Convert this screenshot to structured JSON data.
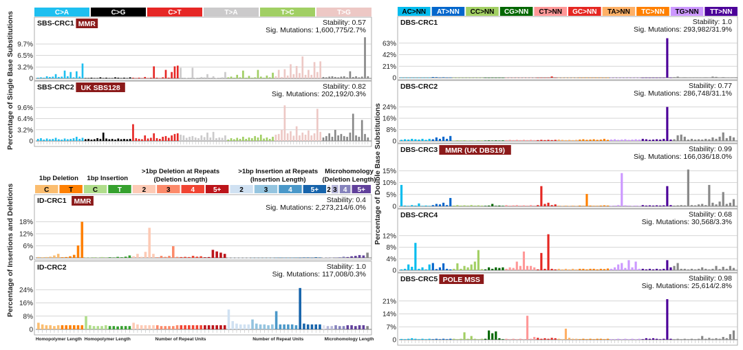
{
  "colors": {
    "sbs": [
      "#1ebff0",
      "#000000",
      "#e62725",
      "#cbcacb",
      "#a1cf64",
      "#edc8c5"
    ],
    "sbs_text": [
      "#ffffff",
      "#ffffff",
      "#ffffff",
      "#ffffff",
      "#ffffff",
      "#ffffff"
    ],
    "dbs": [
      "#03bcee",
      "#0266cc",
      "#a2cf63",
      "#036700",
      "#ff9898",
      "#e52722",
      "#ffb066",
      "#ff8000",
      "#cc98ff",
      "#4c0199"
    ],
    "dbs_text": [
      "#000000",
      "#ffffff",
      "#000000",
      "#ffffff",
      "#000000",
      "#ffffff",
      "#000000",
      "#ffffff",
      "#000000",
      "#ffffff"
    ],
    "id": [
      "#fbbd6f",
      "#fe8002",
      "#b0dd8b",
      "#36a12e",
      "#fdcab5",
      "#fc8a6a",
      "#f14432",
      "#bc141a",
      "#d0e1f2",
      "#94c4df",
      "#4a98c9",
      "#1764ab",
      "#e2e2ef",
      "#b6b6d8",
      "#8683bd",
      "#61409b"
    ],
    "id_text": [
      "#000000",
      "#000000",
      "#000000",
      "#ffffff",
      "#000000",
      "#000000",
      "#ffffff",
      "#ffffff",
      "#000000",
      "#000000",
      "#ffffff",
      "#ffffff",
      "#000000",
      "#000000",
      "#ffffff",
      "#ffffff"
    ],
    "tag_bg": "#8b1a1a"
  },
  "left": {
    "sbs_ylabel": "Percentage of Single Base Substitutions",
    "id_ylabel": "Percentage of Insertions and Deletions",
    "sbs_categories": [
      "C>A",
      "C>G",
      "C>T",
      "T>A",
      "T>C",
      "T>G"
    ],
    "id_groups": [
      {
        "label": "1bp Deletion",
        "line2": "",
        "cells": [
          "C",
          "T"
        ],
        "xlabel": "Homopolymer Length"
      },
      {
        "label": "1bp Insertion",
        "line2": "",
        "cells": [
          "C",
          "T"
        ],
        "xlabel": "Homopolymer Length"
      },
      {
        "label": ">1bp Deletion at Repeats",
        "line2": "(Deletion Length)",
        "cells": [
          "2",
          "3",
          "4",
          "5+"
        ],
        "xlabel": "Number of Repeat Units"
      },
      {
        "label": ">1bp Insertion at Repeats",
        "line2": "(Insertion Length)",
        "cells": [
          "2",
          "3",
          "4",
          "5+"
        ],
        "xlabel": "Number of Repeat Units"
      },
      {
        "label": "Microhomology",
        "line2": "(Deletion Length)",
        "cells": [
          "2",
          "3",
          "4",
          "5+"
        ],
        "xlabel": "Microhomology Length"
      }
    ]
  },
  "right": {
    "dbs_ylabel": "Percentage of Double Base Substitutions",
    "dbs_categories": [
      "AC>NN",
      "AT>NN",
      "CC>NN",
      "CG>NN",
      "CT>NN",
      "GC>NN",
      "TA>NN",
      "TC>NN",
      "TG>NN",
      "TT>NN"
    ]
  },
  "chart_data": [
    {
      "type": "bar",
      "title": "SBS-CRC1",
      "tag": "MMR",
      "stability": "Stability: 0.57",
      "mutations": "Sig. Mutations: 1,600,775/2.7%",
      "ylabel": "Percentage of Single Base Substitutions",
      "ylim": [
        0,
        13
      ],
      "yticks": [
        0,
        3.2,
        6.5,
        9.7
      ],
      "ytick_labels": [
        "0",
        "3.2%",
        "6.5%",
        "9.7%"
      ],
      "group_sizes": [
        16,
        16,
        16,
        16,
        16,
        16
      ],
      "values": [
        0.2,
        0.3,
        0.2,
        0.6,
        0.4,
        0.5,
        1.2,
        0.4,
        0.5,
        2.2,
        0.6,
        1.8,
        0.3,
        2.0,
        0.5,
        4.2,
        0.1,
        0.1,
        0.2,
        0.1,
        0.1,
        0.3,
        0.1,
        0.2,
        0.1,
        0.1,
        0.3,
        0.2,
        0.1,
        0.2,
        0.1,
        0.3,
        0.2,
        0.1,
        0.2,
        0.1,
        0.4,
        0.1,
        0.2,
        3.4,
        0.2,
        0.1,
        0.3,
        2.4,
        0.2,
        1.8,
        3.4,
        3.6,
        3.0,
        0.2,
        0.1,
        0.2,
        3.0,
        0.1,
        0.2,
        0.4,
        0.3,
        1.2,
        0.2,
        0.6,
        0.1,
        0.2,
        0.3,
        1.8,
        0.3,
        0.5,
        0.2,
        1.0,
        0.3,
        2.2,
        0.2,
        0.7,
        0.2,
        0.3,
        2.4,
        0.5,
        0.2,
        0.8,
        0.3,
        1.6,
        0.6,
        2.4,
        0.4,
        2.6,
        0.8,
        4.0,
        1.2,
        3.5,
        1.5,
        6.2,
        1.0,
        2.4,
        1.0,
        4.6,
        1.8,
        4.8,
        0.4,
        0.3,
        0.5,
        0.6,
        0.4,
        0.3,
        0.5,
        0.6,
        0.3,
        2.0,
        0.4,
        0.6,
        0.3,
        0.5,
        11.6,
        0.6
      ]
    },
    {
      "type": "bar",
      "title": "SBS-CRC2",
      "tag": "UK SBS128",
      "stability": "Stability: 0.82",
      "mutations": "Sig. Mutations: 202,192/0.3%",
      "ylabel": "Percentage of Single Base Substitutions",
      "ylim": [
        0,
        12.8
      ],
      "yticks": [
        0,
        3.2,
        6.4,
        9.6
      ],
      "ytick_labels": [
        "0",
        "3.2%",
        "6.4%",
        "9.6%"
      ],
      "group_sizes": [
        16,
        16,
        16,
        16,
        16,
        16
      ],
      "values": [
        0.6,
        0.8,
        0.4,
        0.7,
        0.5,
        0.6,
        0.9,
        0.5,
        0.4,
        0.7,
        0.5,
        0.6,
        0.8,
        1.2,
        0.6,
        0.9,
        0.5,
        0.6,
        0.4,
        0.5,
        0.8,
        0.6,
        2.4,
        0.7,
        0.5,
        0.6,
        0.4,
        0.7,
        0.5,
        0.6,
        0.5,
        0.6,
        4.8,
        0.8,
        0.6,
        0.5,
        1.6,
        0.7,
        0.9,
        2.2,
        0.8,
        0.6,
        1.2,
        1.4,
        0.9,
        1.6,
        2.0,
        2.2,
        1.8,
        1.6,
        0.9,
        1.2,
        1.4,
        1.0,
        0.8,
        1.6,
        1.1,
        2.4,
        1.0,
        2.6,
        0.8,
        1.0,
        0.9,
        1.6,
        0.4,
        0.8,
        0.5,
        0.9,
        0.6,
        1.2,
        0.6,
        1.0,
        0.8,
        1.4,
        1.0,
        1.8,
        0.7,
        1.0,
        0.6,
        1.2,
        1.8,
        2.0,
        3.2,
        10.2,
        2.2,
        2.8,
        1.5,
        4.2,
        1.6,
        2.4,
        1.8,
        3.0,
        1.6,
        2.2,
        9.2,
        2.6,
        1.0,
        1.4,
        2.2,
        1.2,
        3.2,
        1.6,
        2.0,
        1.4,
        1.2,
        2.4,
        7.8,
        1.6,
        1.2,
        6.0,
        2.0,
        1.0
      ]
    },
    {
      "type": "bar",
      "title": "ID-CRC1",
      "tag": "MMR",
      "stability": "Stability: 0.4",
      "mutations": "Sig. Mutations: 2,273,214/6.0%",
      "ylabel": "Percentage of Insertions and Deletions",
      "ylim": [
        0,
        24
      ],
      "yticks": [
        0,
        6,
        12,
        18
      ],
      "ytick_labels": [
        "0",
        "6%",
        "12%",
        "18%"
      ],
      "group_sizes": [
        6,
        6,
        6,
        6,
        6,
        6,
        6,
        6,
        6,
        6,
        6,
        6,
        1,
        2,
        3,
        5
      ],
      "values": [
        0.4,
        0.3,
        0.4,
        0.6,
        1.2,
        2.0,
        0.3,
        0.4,
        0.8,
        1.5,
        6.2,
        18.0,
        0.2,
        0.2,
        0.3,
        0.2,
        0.4,
        0.3,
        0.3,
        0.2,
        0.5,
        0.3,
        0.6,
        1.2,
        0.8,
        2.0,
        0.5,
        3.0,
        15.0,
        2.0,
        0.3,
        1.0,
        0.5,
        1.0,
        5.8,
        0.5,
        0.4,
        0.5,
        0.4,
        1.0,
        0.6,
        0.8,
        0.3,
        0.4,
        4.0,
        3.2,
        2.6,
        2.0,
        0.1,
        0.1,
        0.1,
        0.1,
        0.1,
        0.1,
        0.1,
        0.1,
        0.1,
        0.1,
        0.1,
        0.1,
        0.1,
        0.2,
        0.1,
        0.1,
        0.1,
        0.2,
        0.1,
        0.2,
        0.2,
        0.1,
        0.3,
        0.2,
        0.2,
        0.2,
        0.1,
        0.2,
        0.3,
        0.6,
        0.4,
        0.8,
        1.0,
        1.4,
        1.2,
        2.6
      ]
    },
    {
      "type": "bar",
      "title": "ID-CRC2",
      "tag": "",
      "stability": "Stability: 1.0",
      "mutations": "Sig. Mutations: 117,008/0.3%",
      "ylabel": "Percentage of Insertions and Deletions",
      "ylim": [
        0,
        32
      ],
      "yticks": [
        0,
        8,
        16,
        24
      ],
      "ytick_labels": [
        "0",
        "8%",
        "16%",
        "24%"
      ],
      "group_sizes": [
        6,
        6,
        6,
        6,
        6,
        6,
        6,
        6,
        6,
        6,
        6,
        6,
        1,
        2,
        3,
        5
      ],
      "values": [
        4.0,
        3.0,
        2.5,
        2.5,
        2.0,
        2.5,
        2.5,
        2.5,
        2.5,
        2.5,
        2.5,
        2.5,
        8.0,
        2.5,
        2.0,
        2.0,
        2.0,
        2.5,
        2.0,
        2.0,
        1.8,
        2.0,
        2.0,
        2.0,
        4.0,
        3.0,
        2.5,
        2.5,
        2.5,
        2.5,
        2.5,
        2.0,
        2.0,
        2.0,
        2.0,
        2.5,
        2.5,
        2.5,
        2.5,
        2.5,
        2.5,
        2.5,
        2.5,
        2.5,
        2.5,
        2.5,
        2.5,
        2.5,
        12.0,
        5.0,
        3.5,
        3.0,
        3.0,
        3.0,
        6.0,
        3.5,
        3.0,
        3.0,
        2.5,
        3.0,
        11.0,
        3.0,
        3.0,
        3.0,
        3.0,
        2.5,
        25.0,
        3.5,
        3.0,
        3.0,
        3.0,
        3.0,
        2.5,
        2.0,
        2.0,
        2.5,
        2.0,
        2.0,
        2.5,
        2.5,
        2.0,
        2.5,
        2.5,
        2.0
      ]
    },
    {
      "type": "bar",
      "title": "DBS-CRC1",
      "tag": "",
      "stability": "Stability: 1.0",
      "mutations": "Sig. Mutations: 293,982/31.9%",
      "ylabel": "Percentage of Double Base Substitutions",
      "ylim": [
        0,
        84
      ],
      "yticks": [
        0,
        21,
        42,
        63
      ],
      "ytick_labels": [
        "0",
        "21%",
        "42%",
        "63%"
      ],
      "group_sizes": [
        9,
        6,
        9,
        6,
        9,
        6,
        6,
        9,
        9,
        9
      ],
      "values": [
        0.3,
        0.2,
        0.3,
        0.2,
        0.3,
        0.2,
        0.3,
        0.2,
        0.3,
        1.2,
        1.0,
        0.3,
        0.8,
        0.3,
        0.5,
        0.2,
        0.3,
        0.2,
        0.3,
        0.2,
        0.3,
        0.2,
        0.3,
        0.2,
        0.3,
        0.2,
        0.3,
        0.2,
        0.3,
        0.2,
        0.3,
        0.2,
        0.3,
        0.2,
        0.3,
        0.2,
        0.3,
        0.2,
        0.3,
        0.2,
        0.3,
        0.2,
        0.3,
        2.2,
        0.3,
        0.2,
        0.3,
        0.2,
        0.3,
        0.2,
        0.3,
        0.2,
        0.3,
        0.2,
        0.3,
        0.2,
        0.3,
        0.2,
        0.3,
        0.2,
        0.3,
        0.2,
        0.3,
        0.2,
        0.3,
        0.2,
        0.3,
        0.2,
        0.3,
        0.2,
        0.3,
        0.2,
        0.3,
        0.2,
        0.3,
        0.2,
        72.0,
        0.3,
        1.0,
        2.0,
        0.5,
        0.8,
        0.3,
        0.4,
        0.2,
        0.3,
        0.5,
        0.8,
        0.3,
        2.0,
        1.5,
        0.5,
        1.0,
        0.3,
        0.5,
        0.2
      ]
    },
    {
      "type": "bar",
      "title": "DBS-CRC2",
      "tag": "",
      "stability": "Stability: 0.77",
      "mutations": "Sig. Mutations: 286,748/31.1%",
      "ylabel": "Percentage of Double Base Substitutions",
      "ylim": [
        0,
        32
      ],
      "yticks": [
        0,
        8,
        16,
        24
      ],
      "ytick_labels": [
        "0",
        "8%",
        "16%",
        "24%"
      ],
      "group_sizes": [
        9,
        6,
        9,
        6,
        9,
        6,
        6,
        9,
        9,
        9
      ],
      "values": [
        0.8,
        1.2,
        1.0,
        1.5,
        1.2,
        1.0,
        1.5,
        0.8,
        1.5,
        1.2,
        2.5,
        1.5,
        3.0,
        1.5,
        3.5,
        0.3,
        0.5,
        0.4,
        0.5,
        0.3,
        0.4,
        0.3,
        0.5,
        0.4,
        0.3,
        0.4,
        0.3,
        0.4,
        0.3,
        0.4,
        0.6,
        0.8,
        0.6,
        0.8,
        0.6,
        0.8,
        0.6,
        0.8,
        0.6,
        0.6,
        0.8,
        0.6,
        0.8,
        0.6,
        0.8,
        1.0,
        0.8,
        0.6,
        0.8,
        0.6,
        0.8,
        1.0,
        1.2,
        0.8,
        1.0,
        1.2,
        0.8,
        1.0,
        1.5,
        0.8,
        1.0,
        1.2,
        0.8,
        1.0,
        1.2,
        0.8,
        1.0,
        1.2,
        1.0,
        1.5,
        1.2,
        0.8,
        1.0,
        1.2,
        1.0,
        1.5,
        24.0,
        1.0,
        1.2,
        4.0,
        4.5,
        3.0,
        1.0,
        1.5,
        1.0,
        1.2,
        1.0,
        1.5,
        1.2,
        2.5,
        1.5,
        3.0,
        6.0,
        2.0,
        3.5,
        2.5
      ]
    },
    {
      "type": "bar",
      "title": "DBS-CRC3",
      "tag": "MMR (UK DBS19)",
      "stability": "Stability: 0.99",
      "mutations": "Sig. Mutations: 166,036/18.0%",
      "ylabel": "Percentage of Double Base Substitutions",
      "ylim": [
        0,
        20
      ],
      "yticks": [
        0,
        5,
        10,
        15
      ],
      "ytick_labels": [
        "0",
        "5%",
        "10%",
        "15%"
      ],
      "group_sizes": [
        9,
        6,
        9,
        6,
        9,
        6,
        6,
        9,
        9,
        9
      ],
      "values": [
        9.0,
        0.3,
        0.2,
        0.5,
        0.3,
        1.2,
        0.2,
        0.3,
        0.2,
        0.5,
        1.0,
        0.8,
        1.5,
        0.5,
        3.5,
        0.3,
        0.5,
        0.3,
        0.4,
        0.3,
        0.5,
        0.3,
        0.4,
        0.3,
        0.2,
        0.3,
        1.0,
        0.2,
        0.3,
        0.2,
        0.5,
        0.3,
        0.4,
        0.5,
        0.3,
        0.4,
        0.3,
        0.5,
        0.3,
        0.5,
        8.5,
        1.0,
        1.5,
        0.5,
        0.8,
        0.3,
        0.2,
        0.3,
        0.2,
        0.3,
        0.2,
        0.3,
        0.2,
        5.2,
        0.3,
        0.2,
        0.2,
        0.3,
        0.4,
        0.3,
        0.2,
        0.3,
        0.5,
        14.0,
        0.4,
        0.3,
        0.2,
        0.3,
        0.2,
        0.5,
        0.3,
        0.4,
        0.3,
        0.4,
        0.3,
        0.4,
        8.5,
        0.5,
        0.3,
        0.4,
        0.5,
        0.4,
        15.5,
        0.5,
        0.4,
        0.8,
        1.0,
        0.5,
        9.0,
        1.5,
        0.8,
        2.0,
        6.0,
        1.0,
        1.5,
        3.0
      ]
    },
    {
      "type": "bar",
      "title": "DBS-CRC4",
      "tag": "",
      "stability": "Stability: 0.68",
      "mutations": "Sig. Mutations: 30,568/3.3%",
      "ylabel": "Percentage of Double Base Substitutions",
      "ylim": [
        0,
        16
      ],
      "yticks": [
        0,
        4,
        8,
        12
      ],
      "ytick_labels": [
        "0",
        "4%",
        "8%",
        "12%"
      ],
      "group_sizes": [
        9,
        6,
        9,
        6,
        9,
        6,
        6,
        9,
        9,
        9
      ],
      "values": [
        0.3,
        0.5,
        2.0,
        1.2,
        9.5,
        0.5,
        1.0,
        0.3,
        2.0,
        2.5,
        0.4,
        1.0,
        2.4,
        0.5,
        0.3,
        0.5,
        2.4,
        0.5,
        1.5,
        1.0,
        2.0,
        3.0,
        7.0,
        0.4,
        0.3,
        1.0,
        0.5,
        1.0,
        0.8,
        1.0,
        0.5,
        1.0,
        0.8,
        3.0,
        1.5,
        6.5,
        1.5,
        1.5,
        1.0,
        0.3,
        6.0,
        0.5,
        12.5,
        0.5,
        0.3,
        0.5,
        0.3,
        0.5,
        0.3,
        0.5,
        0.3,
        0.5,
        0.5,
        0.3,
        0.5,
        0.5,
        0.3,
        0.5,
        0.4,
        0.6,
        0.5,
        1.0,
        2.0,
        2.5,
        0.8,
        3.5,
        1.0,
        3.0,
        0.5,
        0.5,
        0.3,
        0.5,
        0.3,
        0.5,
        0.3,
        0.5,
        3.5,
        1.0,
        1.5,
        2.5,
        0.5,
        0.5,
        0.3,
        0.5,
        0.3,
        0.5,
        1.0,
        0.5,
        0.3,
        0.5,
        1.5,
        0.4,
        1.2,
        0.5,
        1.5,
        0.8
      ]
    },
    {
      "type": "bar",
      "title": "DBS-CRC5",
      "tag": "POLE MSS",
      "stability": "Stability: 0.98",
      "mutations": "Sig. Mutations: 25,614/2.8%",
      "ylabel": "Percentage of Double Base Substitutions",
      "ylim": [
        0,
        28
      ],
      "yticks": [
        0,
        7,
        14,
        21
      ],
      "ytick_labels": [
        "0",
        "7%",
        "14%",
        "21%"
      ],
      "group_sizes": [
        9,
        6,
        9,
        6,
        9,
        6,
        6,
        9,
        9,
        9
      ],
      "values": [
        0.4,
        0.3,
        0.5,
        0.8,
        0.5,
        0.3,
        0.5,
        0.3,
        0.5,
        0.3,
        0.5,
        0.3,
        0.5,
        0.3,
        0.5,
        0.5,
        0.3,
        0.5,
        4.0,
        0.5,
        2.0,
        0.5,
        0.3,
        0.5,
        0.5,
        5.0,
        3.5,
        4.5,
        0.8,
        0.3,
        0.5,
        0.3,
        0.5,
        0.3,
        0.5,
        0.3,
        13.0,
        0.5,
        1.5,
        1.0,
        0.5,
        0.8,
        0.5,
        1.0,
        0.8,
        0.5,
        0.3,
        6.0,
        1.0,
        0.5,
        0.5,
        0.3,
        0.5,
        0.3,
        0.5,
        0.3,
        0.5,
        0.5,
        0.3,
        0.5,
        0.3,
        0.3,
        0.5,
        0.3,
        0.5,
        0.3,
        0.5,
        0.3,
        0.5,
        0.3,
        0.8,
        0.5,
        0.8,
        0.5,
        0.3,
        0.5,
        22.0,
        0.5,
        0.3,
        0.5,
        0.3,
        0.5,
        0.3,
        0.5,
        0.3,
        0.5,
        2.0,
        0.5,
        1.0,
        0.5,
        0.8,
        0.5,
        1.5,
        0.8,
        3.0,
        5.0
      ]
    }
  ]
}
